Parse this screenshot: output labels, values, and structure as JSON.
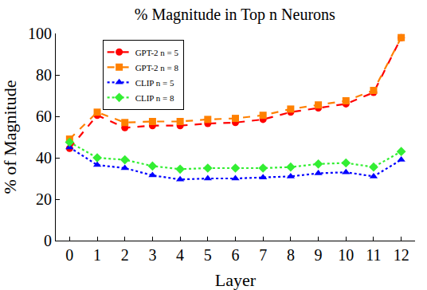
{
  "chart_data": {
    "type": "line",
    "title": "% Magnitude in Top n Neurons",
    "x_label": "Layer",
    "y_label": "% of Magnitude",
    "x": [
      0,
      1,
      2,
      3,
      4,
      5,
      6,
      7,
      8,
      9,
      10,
      11,
      12
    ],
    "xlim": [
      -0.5,
      12.5
    ],
    "xticks": [
      0,
      1,
      2,
      3,
      4,
      5,
      6,
      7,
      8,
      9,
      10,
      11,
      12
    ],
    "ylim": [
      0,
      100
    ],
    "yticks": [
      0,
      20,
      40,
      60,
      80,
      100
    ],
    "grid": false,
    "legend": "upper left",
    "series": [
      {
        "name": "GPT-2 n = 5",
        "color": "#ff0000",
        "marker": "circle",
        "line_style": "dash",
        "values": [
          44.5,
          60.5,
          54.5,
          55.5,
          55.5,
          56.5,
          57,
          58.5,
          62,
          64,
          66,
          71.5,
          98
        ]
      },
      {
        "name": "GPT-2 n = 8",
        "color": "#ff8000",
        "marker": "square",
        "line_style": "dash",
        "values": [
          49,
          62,
          57,
          57.5,
          57.5,
          58.5,
          59,
          60.5,
          63.5,
          65.5,
          67.5,
          72.5,
          98
        ]
      },
      {
        "name": "CLIP n = 5",
        "color": "#0000ff",
        "marker": "triangle-up",
        "line_style": "dot",
        "values": [
          45,
          36.5,
          35,
          31.5,
          29.5,
          30,
          30,
          30.5,
          31,
          32.5,
          33,
          31,
          39
        ]
      },
      {
        "name": "CLIP n = 8",
        "color": "#33ee33",
        "marker": "diamond",
        "line_style": "dot",
        "values": [
          47.5,
          40,
          39,
          36,
          34.5,
          35,
          35,
          35,
          35.5,
          37,
          37.5,
          35.5,
          43
        ]
      }
    ]
  }
}
